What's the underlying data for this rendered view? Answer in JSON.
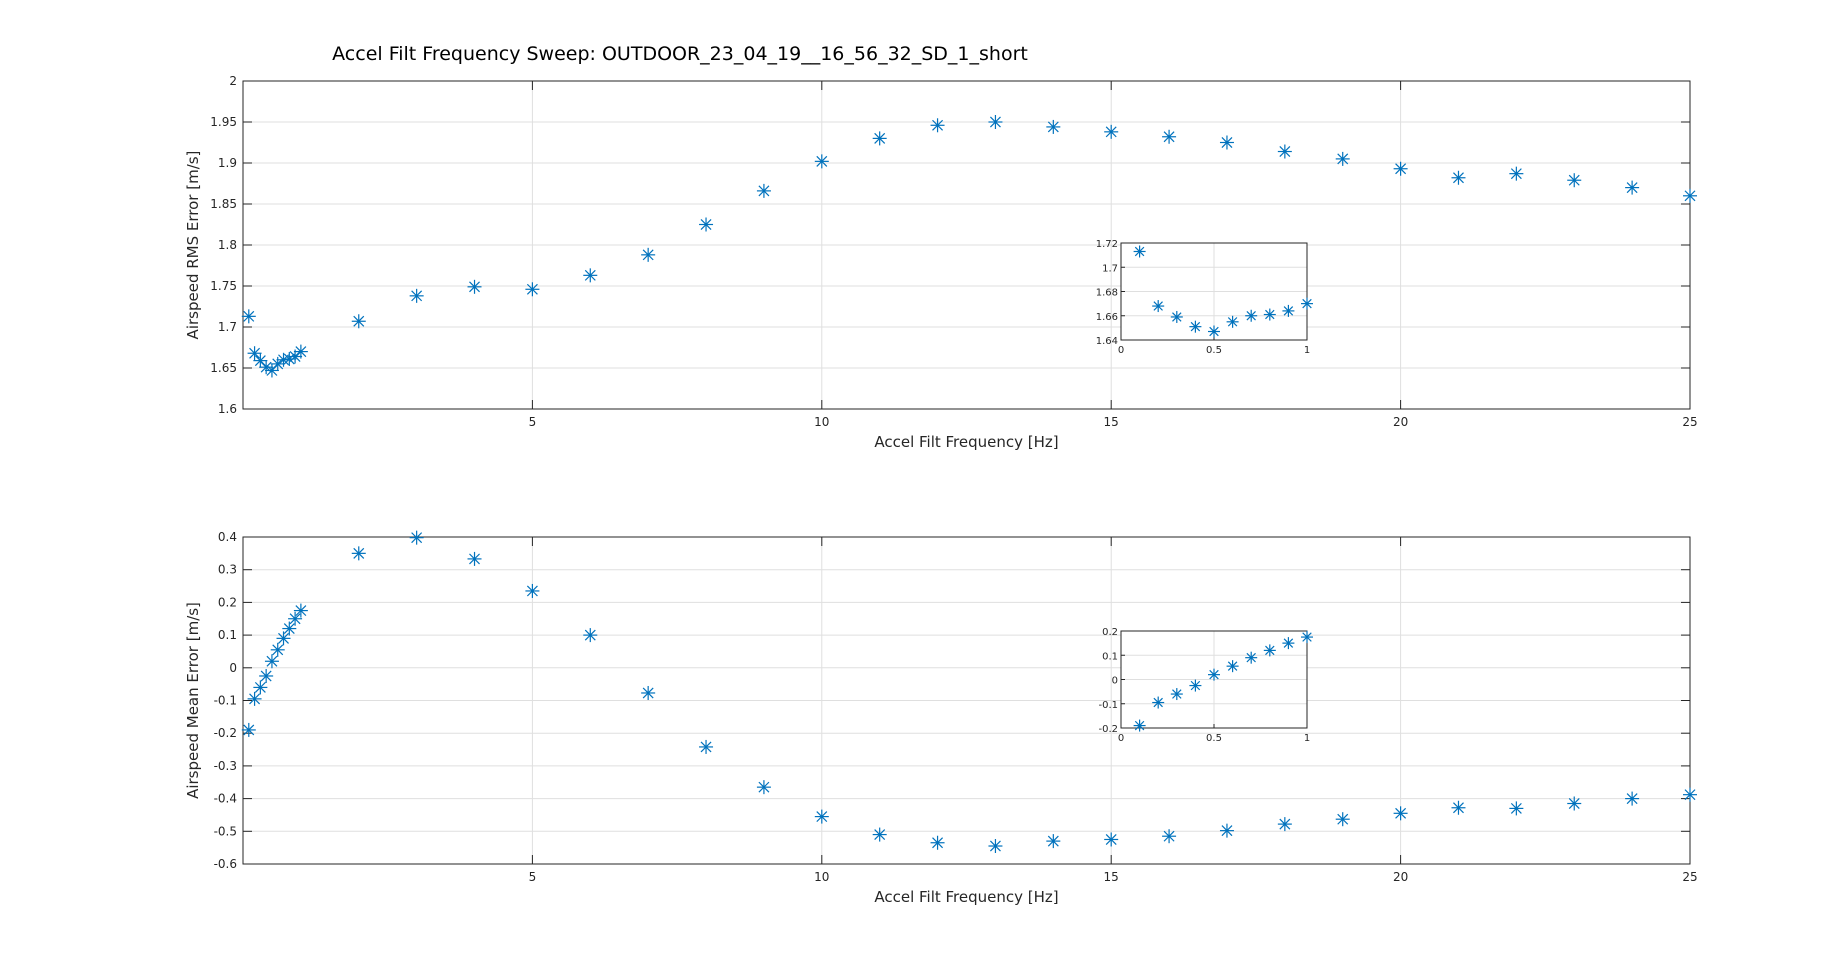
{
  "figure": {
    "title": "Accel Filt Frequency Sweep: OUTDOOR_23_04_19__16_56_32_SD_1_short"
  },
  "colors": {
    "marker": "#0072BD",
    "axis": "#262626",
    "grid": "#dfdfdf"
  },
  "chart_data": [
    {
      "type": "scatter",
      "xlabel": "Accel Filt Frequency [Hz]",
      "ylabel": "Airspeed RMS Error [m/s]",
      "xlim": [
        0,
        25
      ],
      "ylim": [
        1.6,
        2
      ],
      "xticks": [
        5,
        10,
        15,
        20,
        25
      ],
      "yticks": [
        1.6,
        1.65,
        1.7,
        1.75,
        1.8,
        1.85,
        1.9,
        1.95,
        2
      ],
      "ytick_labels": [
        "1.6",
        "1.65",
        "1.7",
        "1.75",
        "1.8",
        "1.85",
        "1.9",
        "1.95",
        "2"
      ],
      "grid": true,
      "marker": "asterisk",
      "x": [
        0.1,
        0.2,
        0.3,
        0.4,
        0.5,
        0.6,
        0.7,
        0.8,
        0.9,
        1,
        2,
        3,
        4,
        5,
        6,
        7,
        8,
        9,
        10,
        11,
        12,
        13,
        14,
        15,
        16,
        17,
        18,
        19,
        20,
        21,
        22,
        23,
        24,
        25
      ],
      "y": [
        1.713,
        1.668,
        1.659,
        1.651,
        1.647,
        1.655,
        1.66,
        1.661,
        1.664,
        1.67,
        1.707,
        1.738,
        1.749,
        1.746,
        1.763,
        1.788,
        1.825,
        1.866,
        1.902,
        1.93,
        1.946,
        1.95,
        1.944,
        1.938,
        1.932,
        1.925,
        1.914,
        1.905,
        1.893,
        1.882,
        1.887,
        1.879,
        1.87,
        1.86
      ],
      "inset": {
        "xlim": [
          0,
          1
        ],
        "ylim": [
          1.64,
          1.72
        ],
        "xticks": [
          0,
          0.5,
          1
        ],
        "xtick_labels": [
          "0",
          "0.5",
          "1"
        ],
        "yticks": [
          1.64,
          1.66,
          1.68,
          1.7,
          1.72
        ],
        "ytick_labels": [
          "1.64",
          "1.66",
          "1.68",
          "1.7",
          "1.72"
        ],
        "x": [
          0.1,
          0.2,
          0.3,
          0.4,
          0.5,
          0.6,
          0.7,
          0.8,
          0.9,
          1
        ],
        "y": [
          1.713,
          1.668,
          1.659,
          1.651,
          1.647,
          1.655,
          1.66,
          1.661,
          1.664,
          1.67
        ]
      }
    },
    {
      "type": "scatter",
      "xlabel": "Accel Filt Frequency [Hz]",
      "ylabel": "Airspeed Mean Error [m/s]",
      "xlim": [
        0,
        25
      ],
      "ylim": [
        -0.6,
        0.4
      ],
      "xticks": [
        5,
        10,
        15,
        20,
        25
      ],
      "yticks": [
        -0.6,
        -0.5,
        -0.4,
        -0.3,
        -0.2,
        -0.1,
        0,
        0.1,
        0.2,
        0.3,
        0.4
      ],
      "ytick_labels": [
        "-0.6",
        "-0.5",
        "-0.4",
        "-0.3",
        "-0.2",
        "-0.1",
        "0",
        "0.1",
        "0.2",
        "0.3",
        "0.4"
      ],
      "grid": true,
      "marker": "asterisk",
      "x": [
        0.1,
        0.2,
        0.3,
        0.4,
        0.5,
        0.6,
        0.7,
        0.8,
        0.9,
        1,
        2,
        3,
        4,
        5,
        6,
        7,
        8,
        9,
        10,
        11,
        12,
        13,
        14,
        15,
        16,
        17,
        18,
        19,
        20,
        21,
        22,
        23,
        24,
        25
      ],
      "y": [
        -0.19,
        -0.095,
        -0.06,
        -0.025,
        0.02,
        0.055,
        0.09,
        0.12,
        0.15,
        0.175,
        0.35,
        0.398,
        0.333,
        0.235,
        0.1,
        -0.077,
        -0.242,
        -0.365,
        -0.455,
        -0.51,
        -0.535,
        -0.545,
        -0.53,
        -0.525,
        -0.515,
        -0.498,
        -0.478,
        -0.463,
        -0.445,
        -0.428,
        -0.43,
        -0.415,
        -0.4,
        -0.388
      ],
      "inset": {
        "xlim": [
          0,
          1
        ],
        "ylim": [
          -0.2,
          0.2
        ],
        "xticks": [
          0,
          0.5,
          1
        ],
        "xtick_labels": [
          "0",
          "0.5",
          "1"
        ],
        "yticks": [
          -0.2,
          -0.1,
          0,
          0.1,
          0.2
        ],
        "ytick_labels": [
          "-0.2",
          "-0.1",
          "0",
          "0.1",
          "0.2"
        ],
        "x": [
          0.1,
          0.2,
          0.3,
          0.4,
          0.5,
          0.6,
          0.7,
          0.8,
          0.9,
          1
        ],
        "y": [
          -0.19,
          -0.095,
          -0.06,
          -0.025,
          0.02,
          0.055,
          0.09,
          0.12,
          0.15,
          0.175
        ]
      }
    }
  ]
}
